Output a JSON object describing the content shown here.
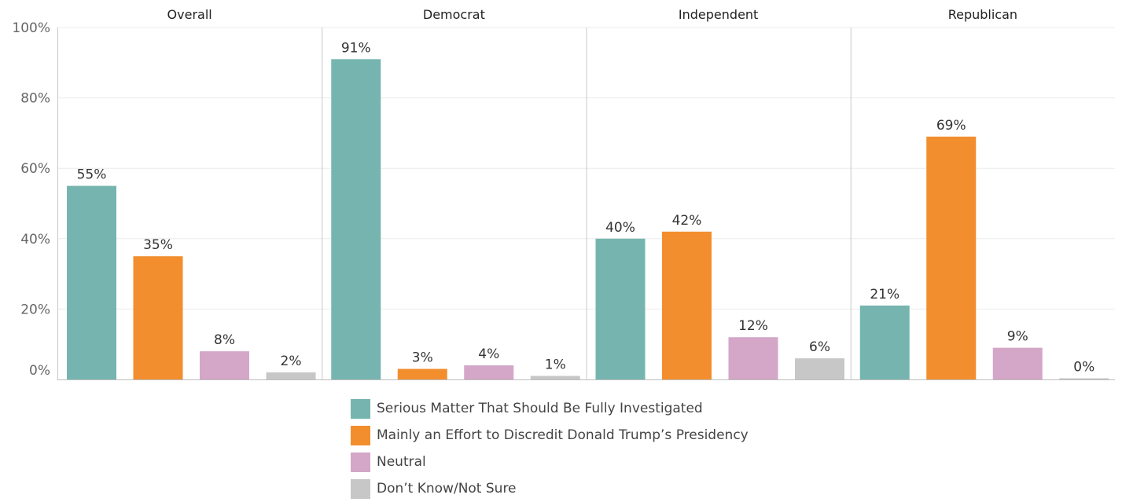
{
  "chart_data": {
    "type": "bar",
    "panels": [
      "Overall",
      "Democrat",
      "Independent",
      "Republican"
    ],
    "y_ticks": [
      "0%",
      "20%",
      "40%",
      "60%",
      "80%",
      "100%"
    ],
    "ylim": [
      0,
      100
    ],
    "grid": true,
    "legend_placement": "bottom-center",
    "series": [
      {
        "name": "Serious Matter That Should Be Fully Investigated",
        "color": "#76b5af",
        "values": [
          55,
          91,
          40,
          21
        ],
        "labels": [
          "55%",
          "91%",
          "40%",
          "21%"
        ]
      },
      {
        "name": "Mainly an Effort to Discredit Donald Trump’s Presidency",
        "color": "#f28e2e",
        "values": [
          35,
          3,
          42,
          69
        ],
        "labels": [
          "35%",
          "3%",
          "42%",
          "69%"
        ]
      },
      {
        "name": "Neutral",
        "color": "#d4a6c8",
        "values": [
          8,
          4,
          12,
          9
        ],
        "labels": [
          "8%",
          "4%",
          "12%",
          "9%"
        ]
      },
      {
        "name": "Don’t Know/Not Sure",
        "color": "#c7c7c7",
        "values": [
          2,
          1,
          6,
          0
        ],
        "labels": [
          "2%",
          "1%",
          "6%",
          "0%"
        ]
      }
    ]
  }
}
